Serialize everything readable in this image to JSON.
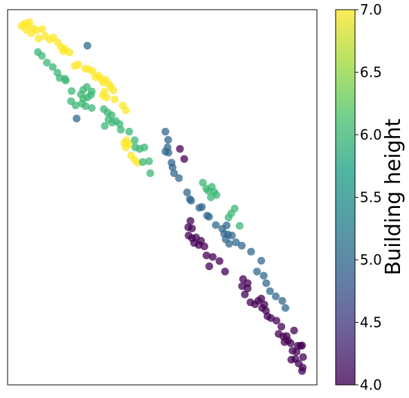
{
  "chart_data": {
    "type": "scatter",
    "title": "",
    "xlabel": "",
    "ylabel": "",
    "x_ticks_shown": false,
    "y_ticks_shown": false,
    "grid": false,
    "legend": "none",
    "colormap": "viridis",
    "alpha": 0.75,
    "colorbar": {
      "label": "Building height",
      "range": [
        4.0,
        7.0
      ],
      "ticks": [
        4.0,
        4.5,
        5.0,
        5.5,
        6.0,
        6.5,
        7.0
      ],
      "tick_labels": [
        "4.0",
        "4.5",
        "5.0",
        "5.5",
        "6.0",
        "6.5",
        "7.0"
      ],
      "placement": "right"
    },
    "xlim": [
      0,
      100
    ],
    "ylim": [
      0,
      100
    ],
    "points": [
      {
        "x": 4.5,
        "y": 95.6,
        "v": 7
      },
      {
        "x": 5.4,
        "y": 96.3,
        "v": 7
      },
      {
        "x": 6.0,
        "y": 94.6,
        "v": 7
      },
      {
        "x": 6.6,
        "y": 95.9,
        "v": 7
      },
      {
        "x": 7.0,
        "y": 96.7,
        "v": 7
      },
      {
        "x": 7.6,
        "y": 93.7,
        "v": 7
      },
      {
        "x": 8.3,
        "y": 95.0,
        "v": 7
      },
      {
        "x": 9.4,
        "y": 94.5,
        "v": 7
      },
      {
        "x": 10.0,
        "y": 92.3,
        "v": 7
      },
      {
        "x": 11.2,
        "y": 94.8,
        "v": 7
      },
      {
        "x": 12.1,
        "y": 93.0,
        "v": 7
      },
      {
        "x": 13.6,
        "y": 92.0,
        "v": 7
      },
      {
        "x": 14.8,
        "y": 92.6,
        "v": 7
      },
      {
        "x": 16.2,
        "y": 91.3,
        "v": 7
      },
      {
        "x": 17.3,
        "y": 90.0,
        "v": 7
      },
      {
        "x": 18.1,
        "y": 88.9,
        "v": 7
      },
      {
        "x": 18.5,
        "y": 89.6,
        "v": 7
      },
      {
        "x": 20.0,
        "y": 88.6,
        "v": 7
      },
      {
        "x": 21.7,
        "y": 85.0,
        "v": 7
      },
      {
        "x": 22.8,
        "y": 85.4,
        "v": 7
      },
      {
        "x": 25.1,
        "y": 84.3,
        "v": 7
      },
      {
        "x": 26.2,
        "y": 84.1,
        "v": 7
      },
      {
        "x": 27.5,
        "y": 83.6,
        "v": 7
      },
      {
        "x": 28.4,
        "y": 82.0,
        "v": 7
      },
      {
        "x": 29.4,
        "y": 82.4,
        "v": 7
      },
      {
        "x": 30.1,
        "y": 81.6,
        "v": 7
      },
      {
        "x": 30.9,
        "y": 80.6,
        "v": 7
      },
      {
        "x": 31.7,
        "y": 81.3,
        "v": 7
      },
      {
        "x": 32.8,
        "y": 80.1,
        "v": 7
      },
      {
        "x": 33.3,
        "y": 79.4,
        "v": 7
      },
      {
        "x": 34.2,
        "y": 78.5,
        "v": 7
      },
      {
        "x": 31.3,
        "y": 78.1,
        "v": 7
      },
      {
        "x": 32.0,
        "y": 76.6,
        "v": 7
      },
      {
        "x": 30.8,
        "y": 77.1,
        "v": 7
      },
      {
        "x": 34.6,
        "y": 76.1,
        "v": 7
      },
      {
        "x": 37.2,
        "y": 74.5,
        "v": 7
      },
      {
        "x": 38.2,
        "y": 73.2,
        "v": 7
      },
      {
        "x": 37.7,
        "y": 64.5,
        "v": 7
      },
      {
        "x": 38.5,
        "y": 65.2,
        "v": 7
      },
      {
        "x": 39.3,
        "y": 64.1,
        "v": 7
      },
      {
        "x": 38.2,
        "y": 63.3,
        "v": 7
      },
      {
        "x": 39.9,
        "y": 61.1,
        "v": 7
      },
      {
        "x": 41.0,
        "y": 60.0,
        "v": 7
      },
      {
        "x": 42.1,
        "y": 59.2,
        "v": 7
      },
      {
        "x": 9.8,
        "y": 88.7,
        "v": 6
      },
      {
        "x": 11.1,
        "y": 87.7,
        "v": 6
      },
      {
        "x": 12.7,
        "y": 85.9,
        "v": 6
      },
      {
        "x": 14.6,
        "y": 84.7,
        "v": 6
      },
      {
        "x": 16.8,
        "y": 81.8,
        "v": 6
      },
      {
        "x": 18.8,
        "y": 81.1,
        "v": 6
      },
      {
        "x": 16.1,
        "y": 83.2,
        "v": 6
      },
      {
        "x": 18.5,
        "y": 81.6,
        "v": 6
      },
      {
        "x": 20.7,
        "y": 78.3,
        "v": 6
      },
      {
        "x": 23.7,
        "y": 77.4,
        "v": 6
      },
      {
        "x": 24.5,
        "y": 76.3,
        "v": 6
      },
      {
        "x": 25.8,
        "y": 76.6,
        "v": 6
      },
      {
        "x": 26.9,
        "y": 77.3,
        "v": 6
      },
      {
        "x": 24.4,
        "y": 78.6,
        "v": 6
      },
      {
        "x": 25.6,
        "y": 79.4,
        "v": 6
      },
      {
        "x": 27.2,
        "y": 78.2,
        "v": 6
      },
      {
        "x": 24.0,
        "y": 75.0,
        "v": 6
      },
      {
        "x": 25.2,
        "y": 74.3,
        "v": 6
      },
      {
        "x": 27.2,
        "y": 73.8,
        "v": 6
      },
      {
        "x": 20.5,
        "y": 75.6,
        "v": 6
      },
      {
        "x": 22.0,
        "y": 74.5,
        "v": 6
      },
      {
        "x": 31.1,
        "y": 73.5,
        "v": 6
      },
      {
        "x": 32.3,
        "y": 72.6,
        "v": 6
      },
      {
        "x": 33.6,
        "y": 71.9,
        "v": 6
      },
      {
        "x": 35.0,
        "y": 70.3,
        "v": 6
      },
      {
        "x": 33.8,
        "y": 69.9,
        "v": 6
      },
      {
        "x": 36.2,
        "y": 69.5,
        "v": 6
      },
      {
        "x": 32.6,
        "y": 70.7,
        "v": 6
      },
      {
        "x": 36.6,
        "y": 68.0,
        "v": 6
      },
      {
        "x": 31.4,
        "y": 69.0,
        "v": 6
      },
      {
        "x": 39.3,
        "y": 67.5,
        "v": 6
      },
      {
        "x": 41.1,
        "y": 65.2,
        "v": 6
      },
      {
        "x": 41.3,
        "y": 63.3,
        "v": 6
      },
      {
        "x": 42.7,
        "y": 62.9,
        "v": 6
      },
      {
        "x": 44.2,
        "y": 63.3,
        "v": 6
      },
      {
        "x": 43.7,
        "y": 59.4,
        "v": 6
      },
      {
        "x": 45.7,
        "y": 59.6,
        "v": 6
      },
      {
        "x": 46.1,
        "y": 56.4,
        "v": 6
      },
      {
        "x": 63.1,
        "y": 53.9,
        "v": 6
      },
      {
        "x": 64.2,
        "y": 52.3,
        "v": 6
      },
      {
        "x": 64.9,
        "y": 51.7,
        "v": 6
      },
      {
        "x": 66.0,
        "y": 52.8,
        "v": 6
      },
      {
        "x": 66.8,
        "y": 51.4,
        "v": 6
      },
      {
        "x": 67.5,
        "y": 50.6,
        "v": 6
      },
      {
        "x": 65.7,
        "y": 50.0,
        "v": 6
      },
      {
        "x": 72.3,
        "y": 45.7,
        "v": 6
      },
      {
        "x": 71.4,
        "y": 44.6,
        "v": 6
      },
      {
        "x": 73.4,
        "y": 47.0,
        "v": 6
      },
      {
        "x": 75.0,
        "y": 42.4,
        "v": 6
      },
      {
        "x": 25.8,
        "y": 90.4,
        "v": 5
      },
      {
        "x": 22.3,
        "y": 71.0,
        "v": 5
      },
      {
        "x": 51.0,
        "y": 67.5,
        "v": 5
      },
      {
        "x": 51.9,
        "y": 65.3,
        "v": 5
      },
      {
        "x": 51.7,
        "y": 63.3,
        "v": 5
      },
      {
        "x": 51.0,
        "y": 62.2,
        "v": 5
      },
      {
        "x": 52.0,
        "y": 61.9,
        "v": 5
      },
      {
        "x": 53.0,
        "y": 59.2,
        "v": 5
      },
      {
        "x": 53.3,
        "y": 58.0,
        "v": 5
      },
      {
        "x": 53.8,
        "y": 56.4,
        "v": 5
      },
      {
        "x": 55.4,
        "y": 55.1,
        "v": 5
      },
      {
        "x": 58.0,
        "y": 51.3,
        "v": 5
      },
      {
        "x": 58.9,
        "y": 49.5,
        "v": 5
      },
      {
        "x": 59.3,
        "y": 49.1,
        "v": 5
      },
      {
        "x": 62.0,
        "y": 47.2,
        "v": 5
      },
      {
        "x": 62.8,
        "y": 47.4,
        "v": 5
      },
      {
        "x": 64.5,
        "y": 45.1,
        "v": 5
      },
      {
        "x": 65.1,
        "y": 44.8,
        "v": 5
      },
      {
        "x": 67.3,
        "y": 42.6,
        "v": 5
      },
      {
        "x": 69.4,
        "y": 41.6,
        "v": 5
      },
      {
        "x": 70.8,
        "y": 42.5,
        "v": 5
      },
      {
        "x": 70.0,
        "y": 40.3,
        "v": 5
      },
      {
        "x": 71.2,
        "y": 40.1,
        "v": 5
      },
      {
        "x": 72.5,
        "y": 39.8,
        "v": 5
      },
      {
        "x": 70.5,
        "y": 38.8,
        "v": 5
      },
      {
        "x": 71.6,
        "y": 37.6,
        "v": 5
      },
      {
        "x": 73.8,
        "y": 38.0,
        "v": 5
      },
      {
        "x": 75.7,
        "y": 37.1,
        "v": 5
      },
      {
        "x": 78.7,
        "y": 35.5,
        "v": 5
      },
      {
        "x": 82.0,
        "y": 33.1,
        "v": 5
      },
      {
        "x": 80.6,
        "y": 30.2,
        "v": 5
      },
      {
        "x": 82.8,
        "y": 29.1,
        "v": 5
      },
      {
        "x": 83.6,
        "y": 27.1,
        "v": 5
      },
      {
        "x": 84.8,
        "y": 25.0,
        "v": 5
      },
      {
        "x": 86.7,
        "y": 23.6,
        "v": 5
      },
      {
        "x": 88.8,
        "y": 22.4,
        "v": 5
      },
      {
        "x": 89.8,
        "y": 20.5,
        "v": 5
      },
      {
        "x": 55.7,
        "y": 62.9,
        "v": 4
      },
      {
        "x": 57.1,
        "y": 60.2,
        "v": 4
      },
      {
        "x": 59.1,
        "y": 43.7,
        "v": 4
      },
      {
        "x": 58.4,
        "y": 42.0,
        "v": 4
      },
      {
        "x": 59.6,
        "y": 41.7,
        "v": 4
      },
      {
        "x": 58.5,
        "y": 39.8,
        "v": 4
      },
      {
        "x": 59.6,
        "y": 39.1,
        "v": 4
      },
      {
        "x": 60.3,
        "y": 37.8,
        "v": 4
      },
      {
        "x": 60.9,
        "y": 39.3,
        "v": 4
      },
      {
        "x": 61.8,
        "y": 37.3,
        "v": 4
      },
      {
        "x": 62.5,
        "y": 38.4,
        "v": 4
      },
      {
        "x": 63.6,
        "y": 36.9,
        "v": 4
      },
      {
        "x": 64.3,
        "y": 34.5,
        "v": 4
      },
      {
        "x": 66.3,
        "y": 34.1,
        "v": 4
      },
      {
        "x": 65.2,
        "y": 31.6,
        "v": 4
      },
      {
        "x": 68.5,
        "y": 33.0,
        "v": 4
      },
      {
        "x": 70.3,
        "y": 30.2,
        "v": 4
      },
      {
        "x": 76.1,
        "y": 28.2,
        "v": 4
      },
      {
        "x": 77.6,
        "y": 27.1,
        "v": 4
      },
      {
        "x": 75.8,
        "y": 26.3,
        "v": 4
      },
      {
        "x": 76.7,
        "y": 24.1,
        "v": 4
      },
      {
        "x": 77.6,
        "y": 25.7,
        "v": 4
      },
      {
        "x": 78.5,
        "y": 22.0,
        "v": 4
      },
      {
        "x": 81.0,
        "y": 22.4,
        "v": 4
      },
      {
        "x": 80.0,
        "y": 21.5,
        "v": 4
      },
      {
        "x": 82.0,
        "y": 23.0,
        "v": 4
      },
      {
        "x": 83.0,
        "y": 21.4,
        "v": 4
      },
      {
        "x": 82.3,
        "y": 20.5,
        "v": 4
      },
      {
        "x": 83.5,
        "y": 19.8,
        "v": 4
      },
      {
        "x": 84.0,
        "y": 18.3,
        "v": 4
      },
      {
        "x": 85.1,
        "y": 17.8,
        "v": 4
      },
      {
        "x": 86.9,
        "y": 17.1,
        "v": 4
      },
      {
        "x": 88.5,
        "y": 15.5,
        "v": 4
      },
      {
        "x": 87.6,
        "y": 13.6,
        "v": 4
      },
      {
        "x": 89.1,
        "y": 12.9,
        "v": 4
      },
      {
        "x": 90.2,
        "y": 13.0,
        "v": 4
      },
      {
        "x": 89.5,
        "y": 11.4,
        "v": 4
      },
      {
        "x": 92.6,
        "y": 14.5,
        "v": 4
      },
      {
        "x": 90.6,
        "y": 11.8,
        "v": 4
      },
      {
        "x": 91.5,
        "y": 11.1,
        "v": 4
      },
      {
        "x": 93.8,
        "y": 10.4,
        "v": 4
      },
      {
        "x": 92.1,
        "y": 9.1,
        "v": 4
      },
      {
        "x": 93.4,
        "y": 8.8,
        "v": 4
      },
      {
        "x": 94.7,
        "y": 10.4,
        "v": 4
      },
      {
        "x": 95.2,
        "y": 10.5,
        "v": 4
      },
      {
        "x": 93.0,
        "y": 6.9,
        "v": 4
      },
      {
        "x": 95.5,
        "y": 7.4,
        "v": 4
      },
      {
        "x": 91.7,
        "y": 6.7,
        "v": 4
      },
      {
        "x": 94.1,
        "y": 5.7,
        "v": 4
      },
      {
        "x": 95.4,
        "y": 4.6,
        "v": 4
      },
      {
        "x": 95.2,
        "y": 3.7,
        "v": 4
      }
    ]
  }
}
